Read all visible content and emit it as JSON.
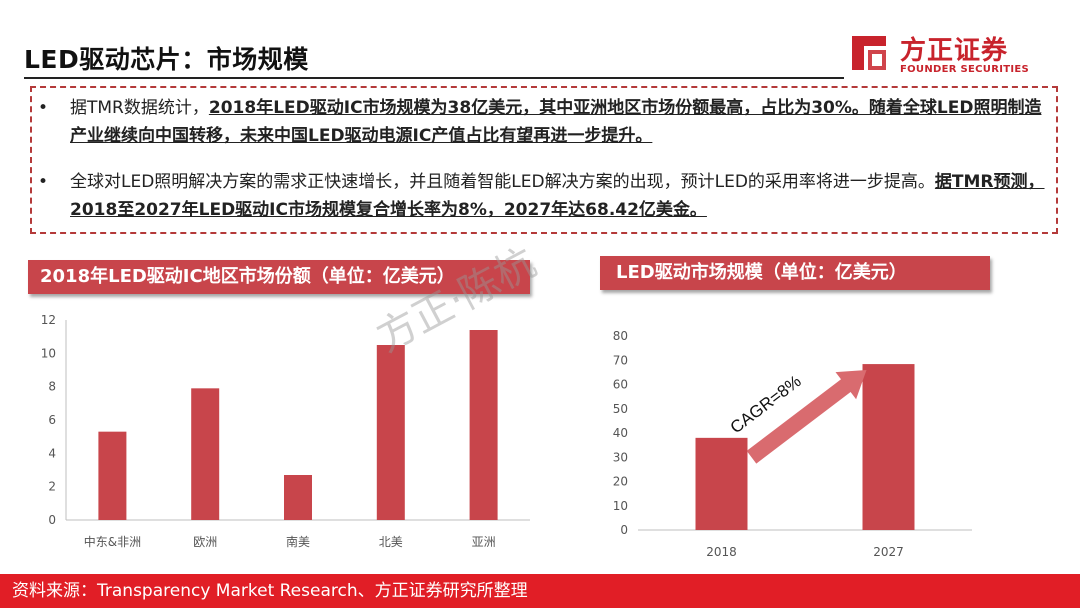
{
  "header": {
    "title": "LED驱动芯片：市场规模",
    "logo_cn": "方正证券",
    "logo_en": "FOUNDER SECURITIES"
  },
  "bullets": [
    {
      "marker": "•",
      "plain_1": "据TMR数据统计，",
      "bold_1": "2018年LED驱动IC市场规模为38亿美元，其中亚洲地区市场份额最高，占比为30%。随着全球LED照明制造产业继续向中国转移，未来中国LED驱动电源IC产值占比有望再进一步提升。"
    },
    {
      "marker": "•",
      "plain_1": "全球对LED照明解决方案的需求正快速增长，并且随着智能LED解决方案的出现，预计LED的采用率将进一步提高。",
      "bold_1": "据TMR预测，2018至2027年LED驱动IC市场规模复合增长率为8%，2027年达68.42亿美金。"
    }
  ],
  "watermark": "方正·陈杭",
  "footer": {
    "source": "资料来源：Transparency Market Research、方正证券研究所整理"
  },
  "colors": {
    "bar": "#c8454b",
    "banner": "#c8454b",
    "footer": "#e11e26",
    "brand": "#c8232c",
    "arrow": "#d96b6f"
  },
  "chart_data": [
    {
      "type": "bar",
      "title": "2018年LED驱动IC地区市场份额（单位：亿美元）",
      "categories": [
        "中东&非洲",
        "欧洲",
        "南美",
        "北美",
        "亚洲"
      ],
      "values": [
        5.3,
        7.9,
        2.7,
        10.5,
        11.4
      ],
      "ylim": [
        0,
        12
      ],
      "yticks": [
        0,
        2,
        4,
        6,
        8,
        10,
        12
      ],
      "grid": false,
      "xlabel": "",
      "ylabel": ""
    },
    {
      "type": "bar",
      "title": "LED驱动市场规模（单位：亿美元）",
      "categories": [
        "2018",
        "2027"
      ],
      "values": [
        38,
        68.42
      ],
      "ylim": [
        0,
        80
      ],
      "yticks": [
        0,
        10,
        20,
        30,
        40,
        50,
        60,
        70,
        80
      ],
      "grid": false,
      "annotation": "CAGR=8%",
      "xlabel": "",
      "ylabel": ""
    }
  ]
}
